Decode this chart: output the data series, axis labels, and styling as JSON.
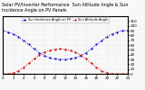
{
  "title": "Solar PV/Inverter Performance  Sun Altitude Angle & Sun Incidence Angle on PV Panels",
  "blue_label": "Sun Incidence Angle on PV",
  "red_label": "Sun Altitude Angle",
  "x": [
    0,
    1,
    2,
    3,
    4,
    5,
    6,
    7,
    8,
    9,
    10,
    11,
    12,
    13,
    14,
    15,
    16,
    17,
    18,
    19,
    20,
    21,
    22,
    23,
    24
  ],
  "blue_y": [
    90,
    87,
    83,
    77,
    69,
    61,
    52,
    44,
    38,
    33,
    31,
    30,
    30,
    31,
    33,
    38,
    44,
    52,
    61,
    69,
    77,
    83,
    87,
    90,
    90
  ],
  "red_y": [
    0,
    0,
    2,
    6,
    14,
    22,
    31,
    39,
    45,
    49,
    51,
    52,
    51,
    49,
    45,
    39,
    31,
    22,
    14,
    6,
    2,
    0,
    0,
    0,
    0
  ],
  "xlim": [
    0,
    24
  ],
  "ylim": [
    0,
    120
  ],
  "ytick_vals": [
    0,
    10,
    20,
    30,
    40,
    50,
    60,
    70,
    80,
    90,
    100,
    110
  ],
  "xtick_vals": [
    0,
    2,
    4,
    6,
    8,
    10,
    12,
    14,
    16,
    18,
    20,
    22,
    24
  ],
  "blue_color": "#0000cc",
  "red_color": "#cc0000",
  "bg_color": "#f8f8f8",
  "grid_color": "#cccccc",
  "title_fontsize": 3.5,
  "tick_fontsize": 3.0,
  "linewidth": 0.7,
  "markersize": 1.2
}
